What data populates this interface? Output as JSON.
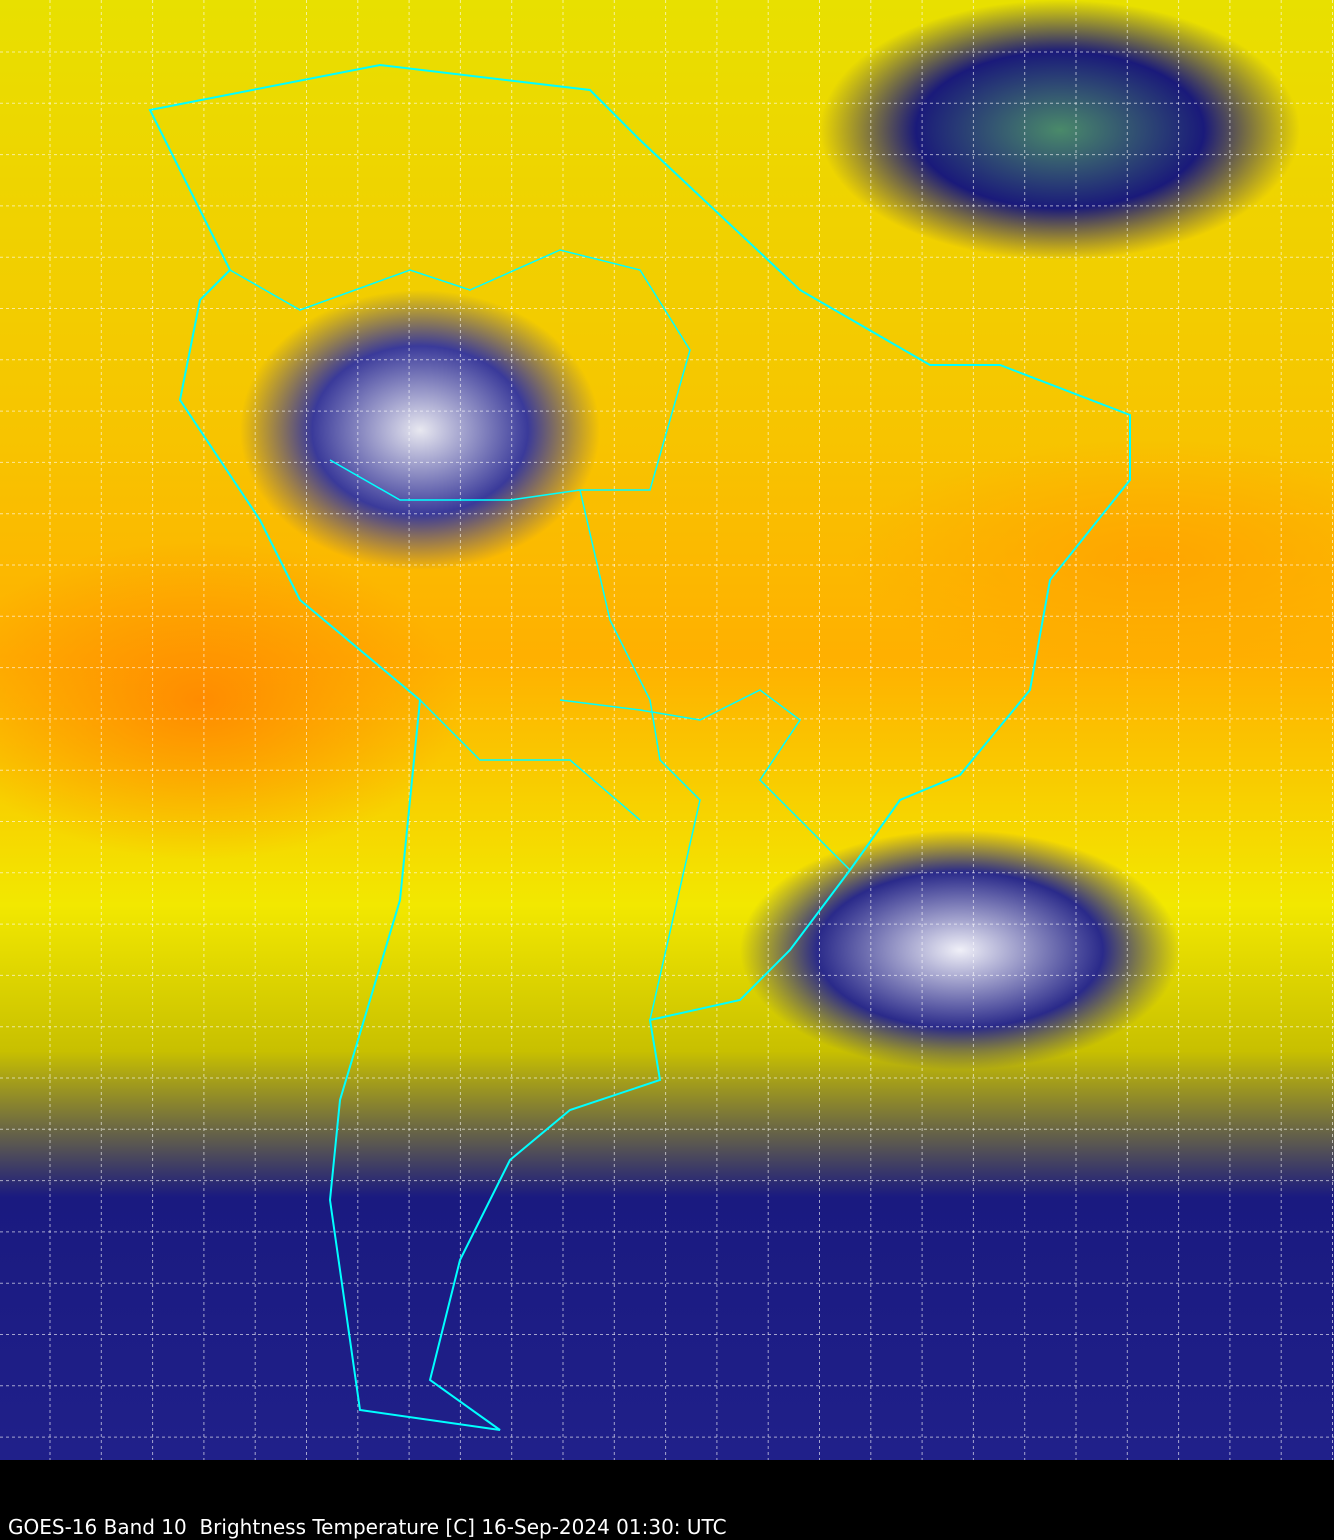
{
  "caption": "GOES-16 Band 10  Brightness Temperature [C] 16-Sep-2024 01:30: UTC",
  "colors": {
    "border": "#00ffff",
    "grid": "#ffffff",
    "background": "#000000"
  },
  "map": {
    "region": "South America",
    "overlays": [
      "country-borders",
      "state-borders",
      "lat-lon-grid"
    ]
  }
}
